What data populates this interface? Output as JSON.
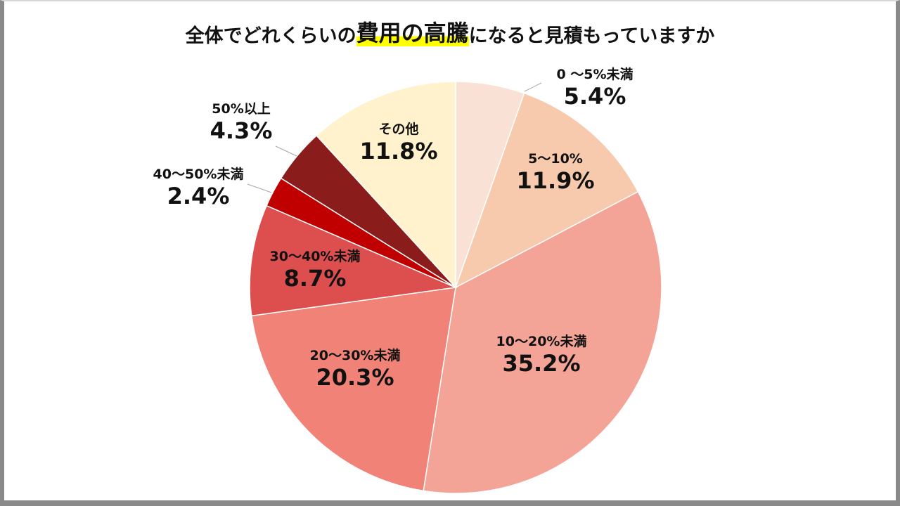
{
  "title": {
    "prefix": "全体でどれくらいの",
    "highlight": "費用の高騰",
    "suffix": "になると見積もっていますか"
  },
  "chart_data": {
    "type": "pie",
    "title": "全体でどれくらいの費用の高騰になると見積もっていますか",
    "start_angle_deg": 0,
    "direction": "clockwise",
    "slices": [
      {
        "label": "0 ～5%未満",
        "value": 5.4,
        "value_label": "5.4%",
        "color": "#f9e1d6"
      },
      {
        "label": "5～10%",
        "value": 11.9,
        "value_label": "11.9%",
        "color": "#f7c9ad"
      },
      {
        "label": "10～20%未満",
        "value": 35.2,
        "value_label": "35.2%",
        "color": "#f4a397"
      },
      {
        "label": "20～30%未満",
        "value": 20.3,
        "value_label": "20.3%",
        "color": "#f08277"
      },
      {
        "label": "30～40%未満",
        "value": 8.7,
        "value_label": "8.7%",
        "color": "#dd4f4f"
      },
      {
        "label": "40～50%未満",
        "value": 2.4,
        "value_label": "2.4%",
        "color": "#c00000"
      },
      {
        "label": "50%以上",
        "value": 4.3,
        "value_label": "4.3%",
        "color": "#8b1c1c"
      },
      {
        "label": "その他",
        "value": 11.8,
        "value_label": "11.8%",
        "color": "#fff2cc"
      }
    ]
  }
}
